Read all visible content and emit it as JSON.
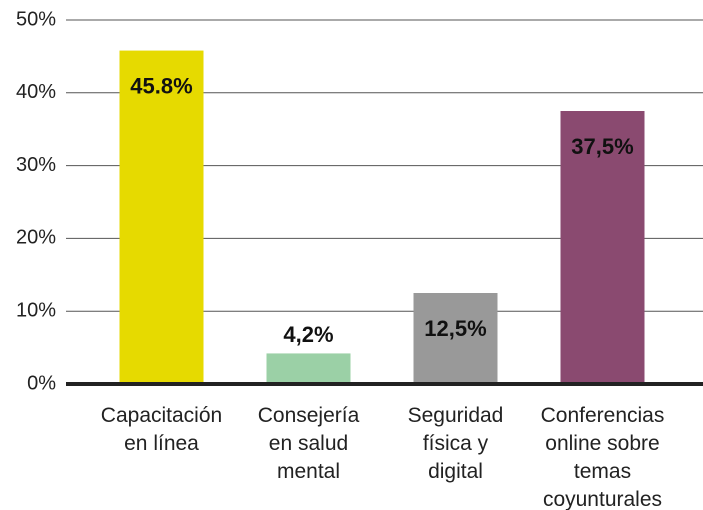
{
  "chart_data": {
    "type": "bar",
    "categories": [
      "Capacitación\nen línea",
      "Consejería\nen salud\nmental",
      "Seguridad\nfísica y\ndigital",
      "Conferencias\nonline sobre\ntemas\ncoyunturales"
    ],
    "values": [
      45.8,
      4.2,
      12.5,
      37.5
    ],
    "value_labels": [
      "45.8%",
      "4,2%",
      "12,5%",
      "37,5%"
    ],
    "colors": [
      "#e6da00",
      "#9bd0a6",
      "#999999",
      "#8a4a70"
    ],
    "ylim": [
      0,
      50
    ],
    "yticks": [
      {
        "value": 0,
        "label": "0%"
      },
      {
        "value": 10,
        "label": "10%"
      },
      {
        "value": 20,
        "label": "20%"
      },
      {
        "value": 30,
        "label": "30%"
      },
      {
        "value": 40,
        "label": "40%"
      },
      {
        "value": 50,
        "label": "50%"
      }
    ],
    "grid": true
  }
}
